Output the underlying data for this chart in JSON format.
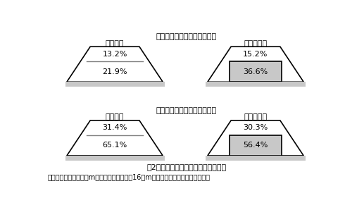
{
  "title_dry": "乾燥時土壌含水率（体積％）",
  "title_wet": "湿潤時土壌含水率（体積％）",
  "label_left": "全層耕起",
  "label_right": "有芯部分耕",
  "dry_left_top": "13.2%",
  "dry_left_bot": "21.9%",
  "dry_right_top": "15.2%",
  "dry_right_bot": "36.6%",
  "wet_left_top": "31.4%",
  "wet_left_bot": "65.1%",
  "wet_right_top": "30.3%",
  "wet_right_bot": "56.4%",
  "caption": "図2　耕起法と土壌含水率との関係．",
  "footnote": "上部は地表面０～８｣m，下部は地表面８～16｣m．　塗りつぶし部分は不耕起部",
  "bg_color": "#ffffff",
  "trap_fill": "#ffffff",
  "trap_edge": "#000000",
  "gray_fill": "#c8c8c8",
  "gray_edge": "#000000",
  "ground_fill": "#c8c8c8",
  "text_color": "#000000",
  "line_color": "#808080"
}
